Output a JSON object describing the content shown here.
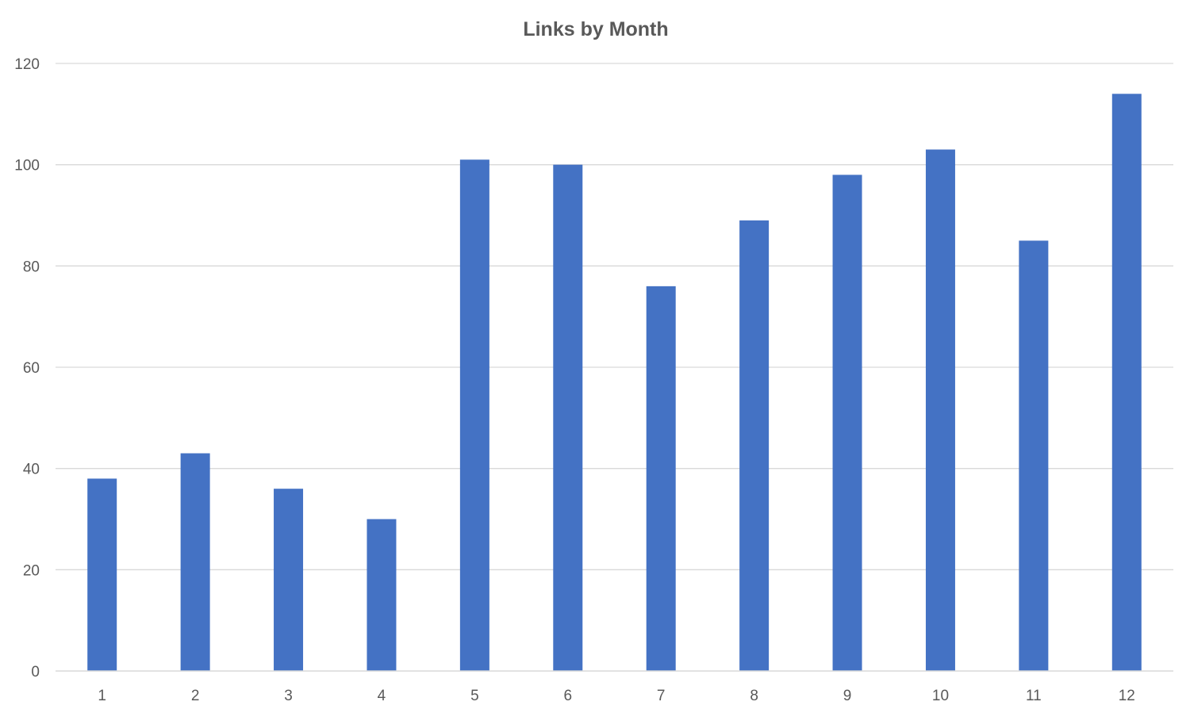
{
  "chart_data": {
    "type": "bar",
    "title": "Links by Month",
    "categories": [
      "1",
      "2",
      "3",
      "4",
      "5",
      "6",
      "7",
      "8",
      "9",
      "10",
      "11",
      "12"
    ],
    "values": [
      38,
      43,
      36,
      30,
      101,
      100,
      76,
      89,
      98,
      103,
      85,
      114
    ],
    "ylim": [
      0,
      120
    ],
    "yticks": [
      0,
      20,
      40,
      60,
      80,
      100,
      120
    ],
    "grid": true,
    "legend": "none",
    "bar_color": "#4472C4"
  }
}
